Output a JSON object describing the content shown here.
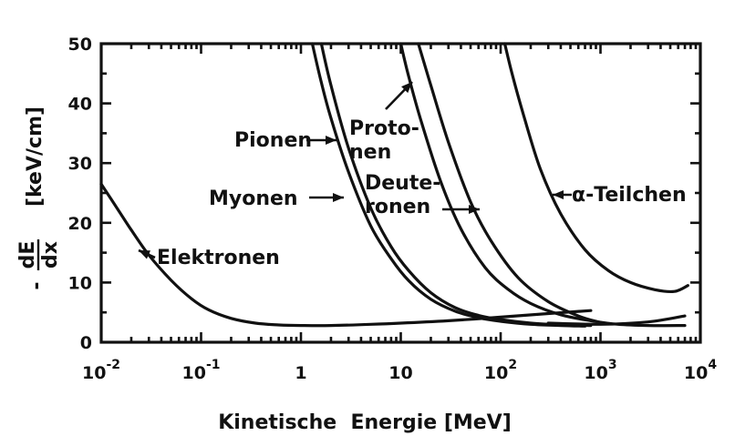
{
  "chart_data": {
    "type": "line",
    "x_scale": "log",
    "xlim": [
      0.01,
      10000
    ],
    "ylim": [
      0,
      50
    ],
    "grid": false,
    "xlabel": "Kinetische  Energie [MeV]",
    "ylabel_fraction_num": "dE",
    "ylabel_fraction_den": "dx",
    "ylabel_minus": "-",
    "ylabel_unit": "[keV/cm]",
    "x_ticks": [
      {
        "value": 0.01,
        "base": "10",
        "exp": "-2"
      },
      {
        "value": 0.1,
        "base": "10",
        "exp": "-1"
      },
      {
        "value": 1,
        "base": "1",
        "exp": ""
      },
      {
        "value": 10,
        "base": "10",
        "exp": ""
      },
      {
        "value": 100,
        "base": "10",
        "exp": "2"
      },
      {
        "value": 1000,
        "base": "10",
        "exp": "3"
      },
      {
        "value": 10000,
        "base": "10",
        "exp": "4"
      }
    ],
    "y_ticks": [
      {
        "value": 0,
        "label": "0"
      },
      {
        "value": 10,
        "label": "10"
      },
      {
        "value": 20,
        "label": "20"
      },
      {
        "value": 30,
        "label": "30"
      },
      {
        "value": 40,
        "label": "40"
      },
      {
        "value": 50,
        "label": "50"
      }
    ],
    "series": [
      {
        "name": "Elektronen",
        "x": [
          0.01,
          0.015,
          0.02,
          0.03,
          0.05,
          0.08,
          0.12,
          0.2,
          0.35,
          0.6,
          1,
          2,
          5,
          10,
          30,
          100,
          300,
          800
        ],
        "y": [
          26.5,
          22.0,
          18.8,
          14.6,
          10.4,
          7.3,
          5.4,
          4.0,
          3.2,
          2.9,
          2.8,
          2.8,
          3.0,
          3.2,
          3.6,
          4.2,
          4.8,
          5.3
        ]
      },
      {
        "name": "Myonen",
        "x": [
          1.3,
          1.6,
          2,
          3,
          5,
          8,
          12,
          20,
          35,
          60,
          100,
          200,
          400,
          700
        ],
        "y": [
          50,
          43.5,
          37.5,
          28.5,
          19.5,
          14.0,
          10.3,
          7.2,
          5.2,
          4.1,
          3.5,
          3.0,
          2.8,
          2.7
        ]
      },
      {
        "name": "Pionen",
        "x": [
          1.6,
          2,
          3,
          5,
          8,
          12,
          20,
          35,
          60,
          100,
          200,
          400,
          800
        ],
        "y": [
          50,
          43.0,
          32.5,
          22.5,
          16.0,
          12.0,
          8.3,
          5.8,
          4.5,
          3.8,
          3.2,
          2.9,
          2.8
        ]
      },
      {
        "name": "Protonen",
        "x": [
          10,
          12,
          16,
          25,
          40,
          70,
          120,
          200,
          400,
          800,
          1500,
          3000,
          7000
        ],
        "y": [
          50,
          44.5,
          37.0,
          27.0,
          19.0,
          12.5,
          8.8,
          6.5,
          4.6,
          3.6,
          3.0,
          2.8,
          2.8
        ]
      },
      {
        "name": "Deuteronen",
        "x": [
          15,
          20,
          30,
          50,
          80,
          150,
          300,
          600,
          1000
        ],
        "y": [
          50,
          43.0,
          33.5,
          23.5,
          17.0,
          10.8,
          6.8,
          4.4,
          3.3
        ]
      },
      {
        "name": "α-Teilchen",
        "x": [
          110,
          130,
          170,
          250,
          400,
          700,
          1200,
          2000,
          3500,
          5500,
          7500
        ],
        "y": [
          50,
          45.0,
          38.0,
          29.0,
          21.5,
          15.5,
          12.0,
          10.0,
          8.8,
          8.5,
          9.5
        ]
      },
      {
        "name": "Elektronen (tail)",
        "x": [
          300,
          1000,
          3000,
          7000
        ],
        "y": [
          3.2,
          3.0,
          3.4,
          4.4
        ]
      }
    ],
    "annotations": [
      {
        "id": "elektronen",
        "text": "Elektronen",
        "lines": [
          "Elektronen"
        ]
      },
      {
        "id": "pionen",
        "text": "Pionen",
        "lines": [
          "Pionen"
        ]
      },
      {
        "id": "myonen",
        "text": "Myonen",
        "lines": [
          "Myonen"
        ]
      },
      {
        "id": "protonen",
        "text": "Protonen",
        "lines": [
          "Proto-",
          "nen"
        ]
      },
      {
        "id": "deuteronen",
        "text": "Deuteronen",
        "lines": [
          "Deute-",
          "ronen"
        ]
      },
      {
        "id": "alpha",
        "text": "α-Teilchen",
        "lines": [
          "α-Teilchen"
        ]
      }
    ]
  }
}
